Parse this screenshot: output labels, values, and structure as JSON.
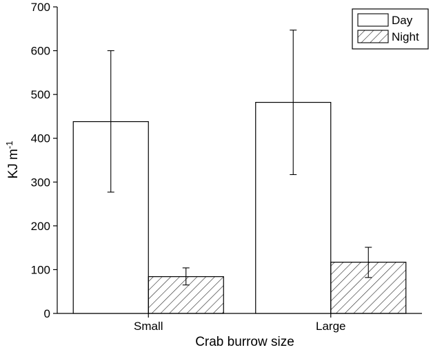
{
  "chart_data": {
    "type": "bar",
    "categories": [
      "Small",
      "Large"
    ],
    "series": [
      {
        "name": "Day",
        "values": [
          438,
          482
        ],
        "error_low": [
          277,
          317
        ],
        "error_high": [
          600,
          647
        ],
        "pattern": "open"
      },
      {
        "name": "Night",
        "values": [
          84,
          117
        ],
        "error_low": [
          65,
          82
        ],
        "error_high": [
          104,
          151
        ],
        "pattern": "hatched"
      }
    ],
    "xlabel": "Crab burrow size",
    "ylabel": "KJ m",
    "ylabel_superscript": "-1",
    "ylim": [
      0,
      700
    ],
    "yticks": [
      "0",
      "100",
      "200",
      "300",
      "400",
      "500",
      "600",
      "700"
    ],
    "grid": false,
    "legend_position": "top-right"
  }
}
